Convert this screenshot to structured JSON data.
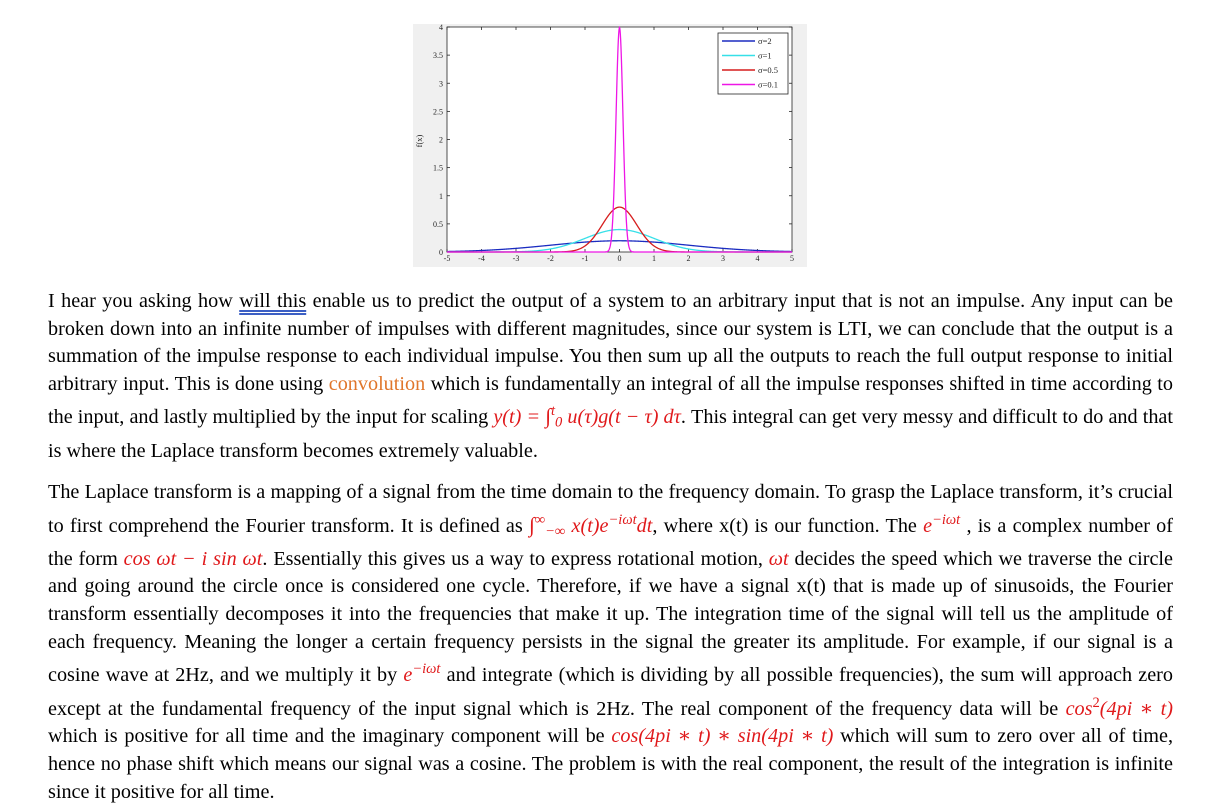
{
  "chart_data": {
    "type": "line",
    "title": "",
    "xlabel": "",
    "ylabel": "f(x)",
    "xlim": [
      -5,
      5
    ],
    "ylim": [
      0,
      4
    ],
    "x_ticks": [
      "-5",
      "-4",
      "-3",
      "-2",
      "-1",
      "0",
      "1",
      "2",
      "3",
      "4",
      "5"
    ],
    "y_ticks": [
      "0",
      "0.5",
      "1",
      "1.5",
      "2",
      "2.5",
      "3",
      "3.5",
      "4"
    ],
    "x_tick_values": [
      -5,
      -4,
      -3,
      -2,
      -1,
      0,
      1,
      2,
      3,
      4,
      5
    ],
    "y_tick_values": [
      0,
      0.5,
      1,
      1.5,
      2,
      2.5,
      3,
      3.5,
      4
    ],
    "legend_position": "top-right",
    "series": [
      {
        "name": "σ=2",
        "sigma": 2,
        "color": "#1b2cc1",
        "peak": 0.199
      },
      {
        "name": "σ=1",
        "sigma": 1,
        "color": "#36e0e8",
        "peak": 0.399
      },
      {
        "name": "σ=0.5",
        "sigma": 0.5,
        "color": "#d61d1d",
        "peak": 0.798
      },
      {
        "name": "σ=0.1",
        "sigma": 0.1,
        "color": "#ee16e6",
        "peak": 3.989
      }
    ]
  },
  "text": {
    "p1": {
      "a": "I hear you asking how ",
      "will_this": "will this",
      "b": " enable us to predict the output of a system to an arbitrary input that is not an impulse. Any input can be broken down into an infinite number of impulses with different magnitudes, since our system is LTI, we can conclude that the output is a summation of the impulse response to each individual impulse. You then sum up all the outputs to reach the full output response to initial arbitrary input. This is done using ",
      "convolution": "convolution",
      "c": " which is fundamentally an integral of all the impulse responses shifted in time according to the input, and lastly multiplied by the input for scaling ",
      "eq_lhs": "y(t) = ",
      "eq_int": "∫",
      "eq_up": "t",
      "eq_dn": "0",
      "eq_rhs": " u(τ)g(t − τ) dτ",
      "d": ". This integral can get very messy and difficult to do and that is where the Laplace transform becomes extremely valuable."
    },
    "p2": {
      "a": "The Laplace transform is a mapping of a signal from the time domain to the frequency domain. To grasp the Laplace transform, it’s crucial to first comprehend the Fourier transform. It is defined as ",
      "ft_int": "∫",
      "ft_up": "∞",
      "ft_dn": "−∞",
      "ft_body": " x(t)e",
      "ft_exp": "−iωt",
      "ft_dt": "dt",
      "b": ", where x(t) is our function. The ",
      "e_base": "e",
      "e_exp": "−iωt",
      "c": " , is a complex number of the form ",
      "cos_form": "cos ωt − i sin ωt",
      "d": ". Essentially this gives us a way to express rotational motion, ",
      "wt": "ωt",
      "e": " decides the speed which we traverse the circle and going around the circle once is considered one cycle. Therefore, if we have a signal x(t) that is made up of sinusoids, the Fourier transform essentially decomposes it into the frequencies that make it up. The integration time of the signal will tell us the amplitude of each frequency. Meaning the longer a certain frequency persists in the signal the greater its amplitude. For example, if our signal is a cosine wave at 2Hz, and we multiply it by ",
      "e2_base": "e",
      "e2_exp": "−iωt",
      "f": " and integrate (which is dividing by all possible frequencies), the sum will approach zero except at the fundamental frequency of the input signal which is 2Hz. The real component of the frequency data will be ",
      "cos2_a": "cos",
      "cos2_sup": "2",
      "cos2_b": "(4pi ∗ t)",
      "g": " which is positive for all time and the imaginary component will be ",
      "cossin": "cos(4pi ∗ t) ∗ sin(4pi ∗ t)",
      "h": " which will sum to zero over all of time, hence no phase shift which means our signal was a cosine. The problem is with the real component, the result of the integration is infinite since it positive for all time."
    }
  }
}
